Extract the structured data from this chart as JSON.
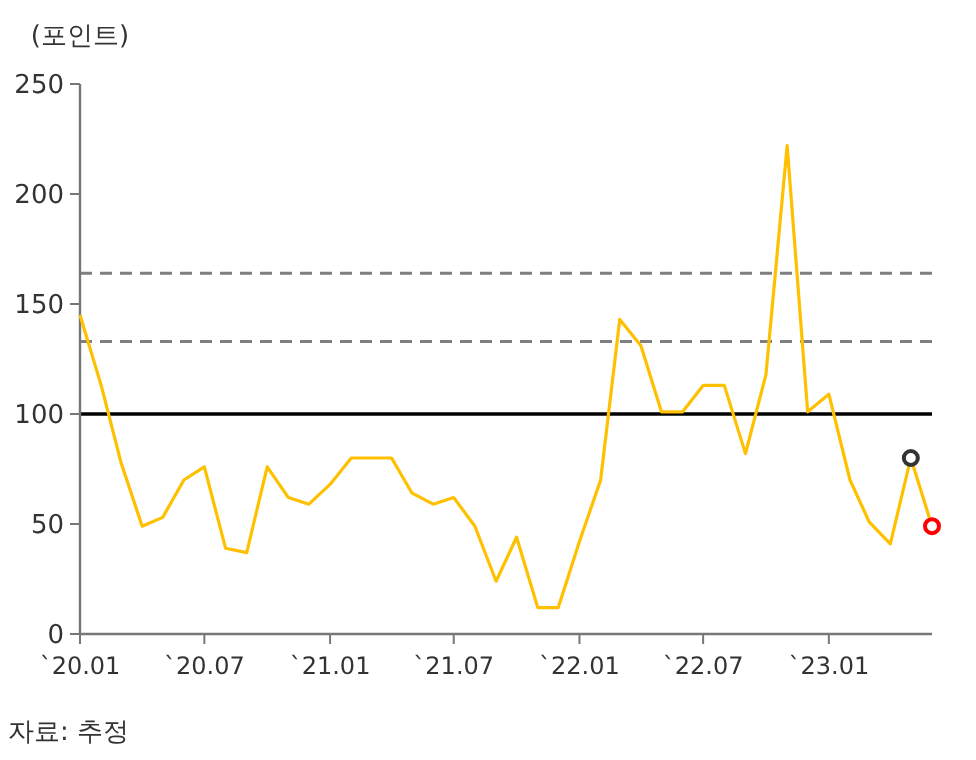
{
  "chart_data": {
    "type": "line",
    "ylabel": "(포인트)",
    "annotations": [
      "자료: 추정"
    ],
    "xlim": [
      "2020-01",
      "2023-06"
    ],
    "ylim": [
      0,
      250
    ],
    "yticks": [
      0,
      50,
      100,
      150,
      200,
      250
    ],
    "xticks": [
      {
        "value": "2020-01",
        "label": "`20.01"
      },
      {
        "value": "2020-07",
        "label": "`20.07"
      },
      {
        "value": "2021-01",
        "label": "`21.01"
      },
      {
        "value": "2021-07",
        "label": "`21.07"
      },
      {
        "value": "2022-01",
        "label": "`22.01"
      },
      {
        "value": "2022-07",
        "label": "`22.07"
      },
      {
        "value": "2023-01",
        "label": "`23.01"
      }
    ],
    "grid": false,
    "marker": "none",
    "line_style": "solid",
    "series": [
      {
        "color": "#ffc000",
        "x": [
          "2020-01",
          "2020-02",
          "2020-03",
          "2020-04",
          "2020-05",
          "2020-06",
          "2020-07",
          "2020-08",
          "2020-09",
          "2020-10",
          "2020-11",
          "2020-12",
          "2021-01",
          "2021-02",
          "2021-03",
          "2021-04",
          "2021-05",
          "2021-06",
          "2021-07",
          "2021-08",
          "2021-09",
          "2021-10",
          "2021-11",
          "2021-12",
          "2022-01",
          "2022-02",
          "2022-03",
          "2022-04",
          "2022-05",
          "2022-06",
          "2022-07",
          "2022-08",
          "2022-09",
          "2022-10",
          "2022-11",
          "2022-12",
          "2023-01",
          "2023-02",
          "2023-03",
          "2023-04",
          "2023-05",
          "2023-06"
        ],
        "values": [
          145,
          113,
          78,
          49,
          53,
          70,
          76,
          39,
          37,
          76,
          62,
          59,
          68,
          80,
          80,
          80,
          64,
          59,
          62,
          49,
          24,
          44,
          12,
          12,
          42,
          70,
          143,
          131,
          101,
          101,
          113,
          113,
          82,
          118,
          222,
          101,
          109,
          70,
          51,
          41,
          80,
          49
        ]
      },
      {
        "type": "scatter",
        "marker": "circle",
        "color": "#333333",
        "x": [
          "2023-05"
        ],
        "values": [
          80
        ]
      },
      {
        "type": "scatter",
        "marker": "circle",
        "color": "#ff0000",
        "x": [
          "2023-06"
        ],
        "values": [
          49
        ]
      }
    ],
    "ref_lines": [
      {
        "axis": "y",
        "value": 100,
        "color": "#000000",
        "line_style": "solid"
      },
      {
        "axis": "y",
        "value": 164,
        "color": "#7f7f7f",
        "line_style": "dashed"
      },
      {
        "axis": "y",
        "value": 133,
        "color": "#7f7f7f",
        "line_style": "dashed"
      }
    ]
  }
}
